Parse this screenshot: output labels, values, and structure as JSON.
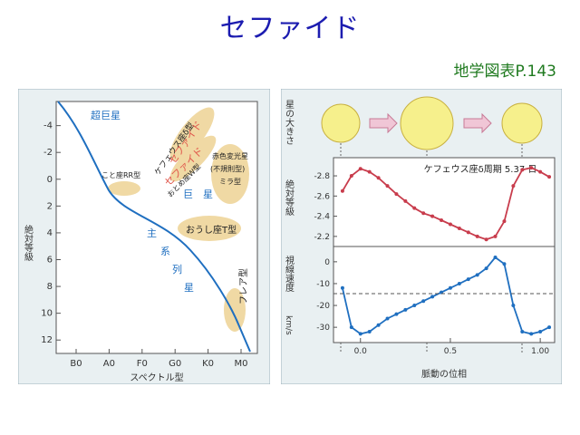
{
  "slide": {
    "title": "セファイド",
    "reference": "地学図表P.143"
  },
  "colors": {
    "title": "#1c1cb0",
    "reference": "#1f7a1f",
    "panel_bg": "#e9f0f2",
    "curve_blue": "#1f6fc0",
    "curve_red": "#c83c4c",
    "bubble_fill": "#f0d9a4",
    "star_fill": "#f6f08c"
  },
  "chart_data": [
    {
      "type": "scatter",
      "title": "",
      "xlabel": "スペクトル型",
      "ylabel": "絶対等級",
      "x_ticks": [
        "B0",
        "A0",
        "F0",
        "G0",
        "K0",
        "M0"
      ],
      "y_ticks": [
        -4,
        -2,
        0,
        2,
        4,
        6,
        8,
        10,
        12
      ],
      "ylim": [
        13,
        -5.8
      ],
      "region_labels": {
        "supergiant": "超巨星",
        "cepheid_delta": "ケフェウス座δ型",
        "cepheid": "セファイド",
        "cepheid2": "セファイド",
        "rr_lyrae": "こと座RR型",
        "w_vir": "おとめ座W型",
        "red_variable": "赤色変光星",
        "irregular": "(不規則型)",
        "mira": "ミラ型",
        "giant": "巨　星",
        "t_tauri": "おうし座T型",
        "main_seq_1": "主",
        "main_seq_2": "系",
        "main_seq_3": "列",
        "main_seq_4": "星",
        "flare": "フレア型"
      }
    },
    {
      "type": "line",
      "title": "ケフェウス座δ周期 5.37 日",
      "star_size_label": "星の大きさ",
      "ylabel": "絶対等級",
      "xlabel": "脈動の位相",
      "xlim": [
        -0.15,
        1.08
      ],
      "ylim": [
        -2.1,
        -2.98
      ],
      "x_ticks": [
        "0.0",
        "0.5",
        "1.00"
      ],
      "y_ticks": [
        "-2.8",
        "-2.6",
        "-2.4",
        "-2.2"
      ],
      "series": [
        {
          "x": [
            -0.1,
            -0.05,
            0.0,
            0.05,
            0.1,
            0.15,
            0.2,
            0.25,
            0.3,
            0.35,
            0.4,
            0.45,
            0.5,
            0.55,
            0.6,
            0.65,
            0.7,
            0.75,
            0.8,
            0.85,
            0.9,
            0.95,
            1.0,
            1.05
          ],
          "values": [
            -2.65,
            -2.8,
            -2.87,
            -2.84,
            -2.78,
            -2.7,
            -2.62,
            -2.55,
            -2.48,
            -2.43,
            -2.4,
            -2.36,
            -2.32,
            -2.28,
            -2.24,
            -2.2,
            -2.17,
            -2.2,
            -2.35,
            -2.7,
            -2.86,
            -2.88,
            -2.84,
            -2.79
          ]
        }
      ]
    },
    {
      "type": "line",
      "title": "",
      "ylabel": "視線速度",
      "yunit": "km/s",
      "xlabel": "脈動の位相",
      "xlim": [
        -0.15,
        1.08
      ],
      "ylim": [
        -37,
        7
      ],
      "x_ticks": [
        "0.0",
        "0.5",
        "1.00"
      ],
      "y_ticks": [
        "0",
        "-10",
        "-20",
        "-30"
      ],
      "series": [
        {
          "x": [
            -0.1,
            -0.05,
            0.0,
            0.05,
            0.1,
            0.15,
            0.2,
            0.25,
            0.3,
            0.35,
            0.4,
            0.45,
            0.5,
            0.55,
            0.6,
            0.65,
            0.7,
            0.75,
            0.8,
            0.85,
            0.9,
            0.95,
            1.0,
            1.05
          ],
          "values": [
            -12,
            -30,
            -33,
            -32,
            -29,
            -26,
            -24,
            -22,
            -20,
            -18,
            -16,
            -14,
            -12,
            -10,
            -8,
            -6,
            -3,
            2,
            -1,
            -20,
            -32,
            -33,
            -32,
            -30
          ]
        }
      ]
    }
  ]
}
